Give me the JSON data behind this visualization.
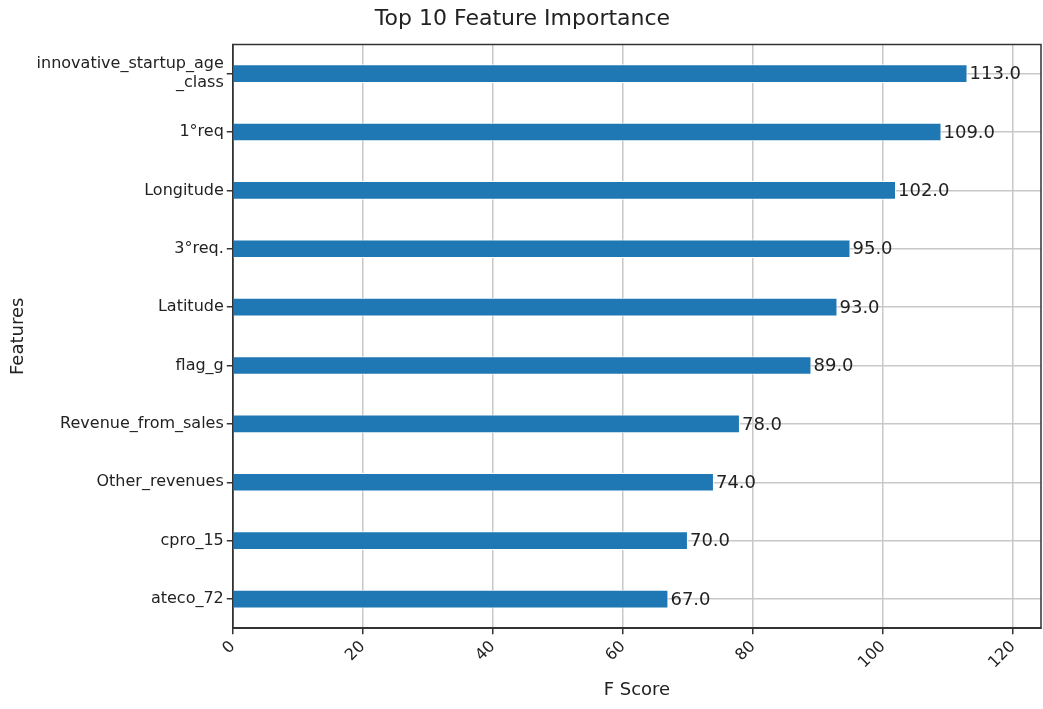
{
  "chart_data": {
    "type": "bar",
    "orientation": "horizontal",
    "title": "Top 10 Feature Importance",
    "xlabel": "F Score",
    "ylabel": "Features",
    "categories": [
      "innovative_startup_age\n_class",
      "1°req",
      "Longitude",
      "3°req.",
      "Latitude",
      "flag_g",
      "Revenue_from_sales",
      "Other_revenues",
      "cpro_15",
      "ateco_72"
    ],
    "values": [
      113,
      109,
      102,
      95,
      93,
      89,
      78,
      74,
      70,
      67
    ],
    "value_labels": [
      "113.0",
      "109.0",
      "102.0",
      "95.0",
      "93.0",
      "89.0",
      "78.0",
      "74.0",
      "70.0",
      "67.0"
    ],
    "color": "#1f77b4",
    "xlim": [
      0,
      124.3
    ],
    "xticks": [
      0,
      20,
      40,
      60,
      80,
      100,
      120
    ],
    "grid": true,
    "legend": false
  }
}
